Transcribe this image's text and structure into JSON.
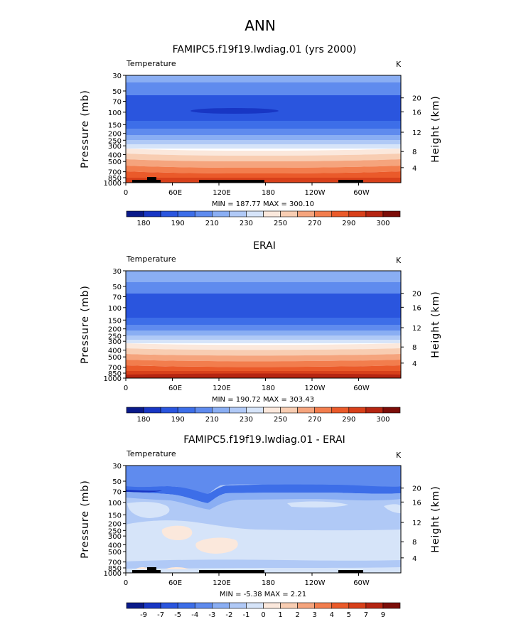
{
  "figure": {
    "title": "ANN"
  },
  "chart_data": [
    {
      "type": "heatmap",
      "title": "FAMIPC5.f19f19.lwdiag.01 (yrs 2000)",
      "variable": "Temperature",
      "units": "K",
      "ylabel": "Pressure (mb)",
      "y2label": "Height (km)",
      "x_ticks": [
        "0",
        "60E",
        "120E",
        "180",
        "120W",
        "60W"
      ],
      "y_ticks": [
        "30",
        "50",
        "70",
        "100",
        "150",
        "200",
        "250",
        "300",
        "400",
        "500",
        "700",
        "850",
        "1000"
      ],
      "y2_ticks": [
        "20",
        "16",
        "12",
        "8",
        "4"
      ],
      "min_max": "MIN = 187.77   MAX = 300.10",
      "colorbar_labels": [
        "180",
        "190",
        "210",
        "230",
        "250",
        "270",
        "290",
        "300"
      ],
      "colorbar_colors": [
        "#0a1a8a",
        "#1836c4",
        "#2a55de",
        "#3d6ee8",
        "#5f8bee",
        "#8aaef3",
        "#b0c9f6",
        "#d6e4f9",
        "#fbe8dc",
        "#f8cdb2",
        "#f5a47d",
        "#f27d4d",
        "#ea5a2a",
        "#d8401a",
        "#b52512",
        "#7c0d08"
      ],
      "contour_levels": [
        180,
        190,
        200,
        210,
        220,
        230,
        240,
        250,
        260,
        270,
        280,
        290,
        300
      ],
      "temperature_profile": [
        {
          "p": 30,
          "t": 219
        },
        {
          "p": 50,
          "t": 213
        },
        {
          "p": 70,
          "t": 207
        },
        {
          "p": 100,
          "t": 201
        },
        {
          "p": 150,
          "t": 210
        },
        {
          "p": 200,
          "t": 217
        },
        {
          "p": 250,
          "t": 225
        },
        {
          "p": 300,
          "t": 232
        },
        {
          "p": 400,
          "t": 246
        },
        {
          "p": 500,
          "t": 257
        },
        {
          "p": 700,
          "t": 273
        },
        {
          "p": 850,
          "t": 283
        },
        {
          "p": 1000,
          "t": 292
        }
      ]
    },
    {
      "type": "heatmap",
      "title": "ERAI",
      "variable": "Temperature",
      "units": "K",
      "ylabel": "Pressure (mb)",
      "y2label": "Height (km)",
      "x_ticks": [
        "0",
        "60E",
        "120E",
        "180",
        "120W",
        "60W"
      ],
      "y_ticks": [
        "30",
        "50",
        "70",
        "100",
        "150",
        "200",
        "250",
        "300",
        "400",
        "500",
        "700",
        "850",
        "1000"
      ],
      "y2_ticks": [
        "20",
        "16",
        "12",
        "8",
        "4"
      ],
      "min_max": "MIN = 190.72   MAX = 303.43",
      "colorbar_labels": [
        "180",
        "190",
        "210",
        "230",
        "250",
        "270",
        "290",
        "300"
      ],
      "colorbar_colors": [
        "#0a1a8a",
        "#1836c4",
        "#2a55de",
        "#3d6ee8",
        "#5f8bee",
        "#8aaef3",
        "#b0c9f6",
        "#d6e4f9",
        "#fbe8dc",
        "#f8cdb2",
        "#f5a47d",
        "#f27d4d",
        "#ea5a2a",
        "#d8401a",
        "#b52512",
        "#7c0d08"
      ],
      "contour_levels": [
        180,
        190,
        200,
        210,
        220,
        230,
        240,
        250,
        260,
        270,
        280,
        290,
        300
      ],
      "temperature_profile": [
        {
          "p": 30,
          "t": 220
        },
        {
          "p": 50,
          "t": 214
        },
        {
          "p": 70,
          "t": 208
        },
        {
          "p": 100,
          "t": 203
        },
        {
          "p": 150,
          "t": 211
        },
        {
          "p": 200,
          "t": 218
        },
        {
          "p": 250,
          "t": 226
        },
        {
          "p": 300,
          "t": 234
        },
        {
          "p": 400,
          "t": 248
        },
        {
          "p": 500,
          "t": 259
        },
        {
          "p": 700,
          "t": 275
        },
        {
          "p": 850,
          "t": 285
        },
        {
          "p": 1000,
          "t": 295
        }
      ]
    },
    {
      "type": "heatmap",
      "title": "FAMIPC5.f19f19.lwdiag.01 - ERAI",
      "variable": "Temperature",
      "units": "K",
      "ylabel": "Pressure (mb)",
      "y2label": "Height (km)",
      "x_ticks": [
        "0",
        "60E",
        "120E",
        "180",
        "120W",
        "60W"
      ],
      "y_ticks": [
        "30",
        "50",
        "70",
        "100",
        "150",
        "200",
        "250",
        "300",
        "400",
        "500",
        "700",
        "850",
        "1000"
      ],
      "y2_ticks": [
        "20",
        "16",
        "12",
        "8",
        "4"
      ],
      "min_max": "MIN =   -5.38   MAX =    2.21",
      "colorbar_labels": [
        "-9",
        "-7",
        "-5",
        "-4",
        "-3",
        "-2",
        "-1",
        "0",
        "1",
        "2",
        "3",
        "4",
        "5",
        "7",
        "9"
      ],
      "colorbar_colors": [
        "#0a1a8a",
        "#1836c4",
        "#2a55de",
        "#3d6ee8",
        "#5f8bee",
        "#8aaef3",
        "#b0c9f6",
        "#d6e4f9",
        "#fbe8dc",
        "#f8cdb2",
        "#f5a47d",
        "#f27d4d",
        "#ea5a2a",
        "#d8401a",
        "#b52512",
        "#7c0d08"
      ],
      "contour_levels": [
        -9,
        -7,
        -5,
        -4,
        -3,
        -2,
        -1,
        0,
        1,
        2,
        3,
        4,
        5,
        7,
        9
      ],
      "difference_profile": [
        {
          "p": 30,
          "d": -2.2
        },
        {
          "p": 50,
          "d": -2.6
        },
        {
          "p": 70,
          "d": -3.4
        },
        {
          "p": 100,
          "d": -2.0
        },
        {
          "p": 150,
          "d": -1.4
        },
        {
          "p": 200,
          "d": -1.6
        },
        {
          "p": 250,
          "d": -1.4
        },
        {
          "p": 300,
          "d": -1.2
        },
        {
          "p": 400,
          "d": -0.6
        },
        {
          "p": 500,
          "d": -0.7
        },
        {
          "p": 700,
          "d": -0.8
        },
        {
          "p": 850,
          "d": -0.6
        },
        {
          "p": 1000,
          "d": -0.5
        }
      ]
    }
  ]
}
